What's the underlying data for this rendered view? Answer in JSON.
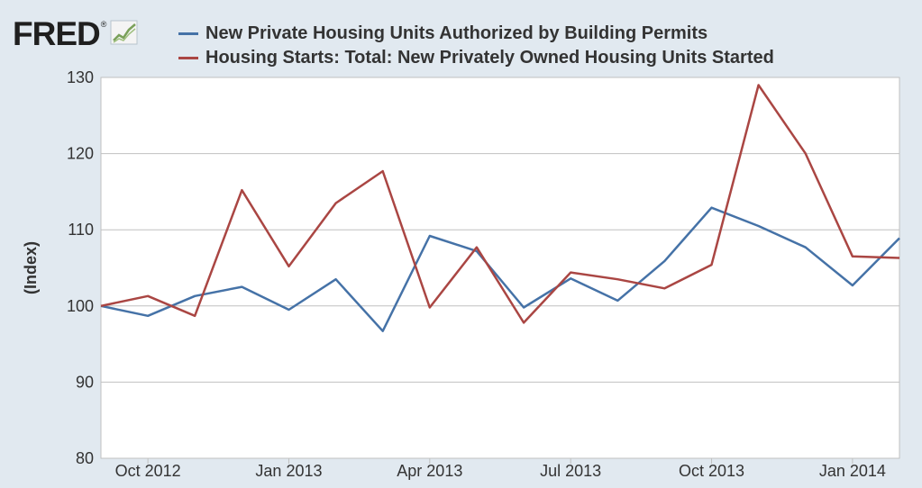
{
  "logo": {
    "text": "FRED",
    "mark": "®",
    "icon": "line-chart-badge-icon"
  },
  "legend": [
    {
      "label": "New Private Housing Units Authorized by Building Permits",
      "color": "#4572a7"
    },
    {
      "label": "Housing Starts: Total: New Privately Owned Housing Units Started",
      "color": "#aa4643"
    }
  ],
  "chart_data": {
    "type": "line",
    "title": "",
    "xlabel": "",
    "ylabel": "(Index)",
    "ylim": [
      80,
      130
    ],
    "yticks": [
      80,
      90,
      100,
      110,
      120,
      130
    ],
    "grid": true,
    "legend_position": "top",
    "x": [
      "2012-09",
      "2012-10",
      "2012-11",
      "2012-12",
      "2013-01",
      "2013-02",
      "2013-03",
      "2013-04",
      "2013-05",
      "2013-06",
      "2013-07",
      "2013-08",
      "2013-09",
      "2013-10",
      "2013-11",
      "2013-12",
      "2014-01",
      "2014-02"
    ],
    "xtick_labels": [
      "Oct 2012",
      "Jan 2013",
      "Apr 2013",
      "Jul 2013",
      "Oct 2013",
      "Jan 2014"
    ],
    "xtick_positions": [
      "2012-10",
      "2013-01",
      "2013-04",
      "2013-07",
      "2013-10",
      "2014-01"
    ],
    "series": [
      {
        "name": "New Private Housing Units Authorized by Building Permits",
        "color": "#4572a7",
        "values": [
          100.0,
          98.7,
          101.3,
          102.5,
          99.5,
          103.5,
          96.7,
          109.2,
          107.2,
          99.8,
          103.6,
          100.7,
          105.9,
          112.9,
          110.5,
          107.7,
          102.7,
          108.9
        ]
      },
      {
        "name": "Housing Starts: Total: New Privately Owned Housing Units Started",
        "color": "#aa4643",
        "values": [
          100.0,
          101.3,
          98.7,
          115.2,
          105.2,
          113.5,
          117.7,
          99.8,
          107.7,
          97.8,
          104.4,
          103.5,
          102.3,
          105.4,
          129.0,
          120.0,
          106.5,
          106.3
        ]
      }
    ]
  }
}
